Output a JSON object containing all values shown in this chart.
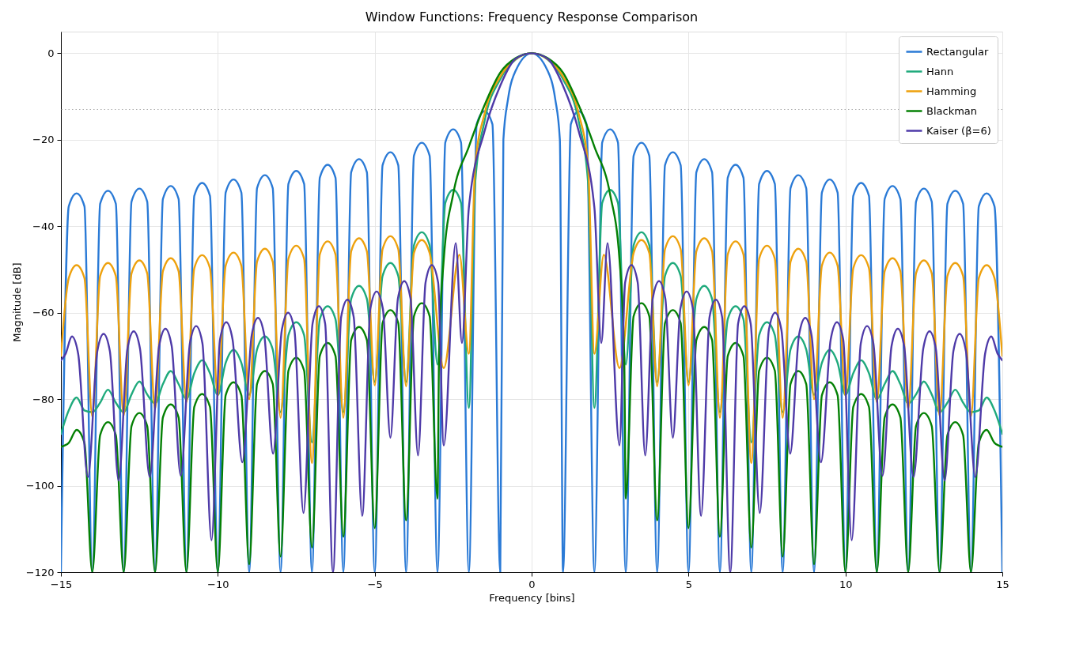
{
  "chart_data": {
    "type": "line",
    "title": "Window Functions: Frequency Response Comparison",
    "xlabel": "Frequency [bins]",
    "ylabel": "Magnitude [dB]",
    "xlim": [
      -15,
      15
    ],
    "ylim": [
      -120,
      5
    ],
    "xticks": [
      {
        "value": -15,
        "label": "−15"
      },
      {
        "value": -10,
        "label": "−10"
      },
      {
        "value": -5,
        "label": "−5"
      },
      0,
      5,
      10,
      15
    ],
    "yticks": [
      {
        "value": -120,
        "label": "−120"
      },
      {
        "value": -100,
        "label": "−100"
      },
      {
        "value": -80,
        "label": "−80"
      },
      {
        "value": -60,
        "label": "−60"
      },
      {
        "value": -40,
        "label": "−40"
      },
      {
        "value": -20,
        "label": "−20"
      },
      0
    ],
    "grid": true,
    "legend": "top right",
    "line_style": "solid",
    "marker": "none",
    "ref_lines": [
      {
        "axis": "y",
        "value": -13,
        "color": "#aaaaaa",
        "line_style": "dotted"
      }
    ],
    "series": [
      {
        "name": "Rectangular",
        "color": "#2a7ad6",
        "x": [
          -15,
          -14.75,
          -14.5,
          -14.25,
          -14,
          -13.75,
          -13.5,
          -13.25,
          -13,
          -12.75,
          -12.5,
          -12.25,
          -12,
          -11.75,
          -11.5,
          -11.25,
          -11,
          -10.75,
          -10.5,
          -10.25,
          -10,
          -9.75,
          -9.5,
          -9.25,
          -9,
          -8.75,
          -8.5,
          -8.25,
          -8,
          -7.75,
          -7.5,
          -7.25,
          -7,
          -6.75,
          -6.5,
          -6.25,
          -6,
          -5.75,
          -5.5,
          -5.25,
          -5,
          -4.75,
          -4.5,
          -4.25,
          -4,
          -3.75,
          -3.5,
          -3.25,
          -3,
          -2.75,
          -2.5,
          -2.25,
          -2,
          -1.75,
          -1.5,
          -1.25,
          -1,
          -0.9,
          -0.75,
          -0.5,
          0,
          0.5,
          0.75,
          0.9,
          1,
          1.25,
          1.5,
          1.75,
          2,
          2.25,
          2.5,
          2.75,
          3,
          3.25,
          3.5,
          3.75,
          4,
          4.25,
          4.5,
          4.75,
          5,
          5.25,
          5.5,
          5.75,
          6,
          6.25,
          6.5,
          6.75,
          7,
          7.25,
          7.5,
          7.75,
          8,
          8.25,
          8.5,
          8.75,
          9,
          9.25,
          9.5,
          9.75,
          10,
          10.25,
          10.5,
          10.75,
          11,
          11.25,
          11.5,
          11.75,
          12,
          12.25,
          12.5,
          12.75,
          13,
          13.25,
          13.5,
          13.75,
          14,
          14.25,
          14.5,
          14.75,
          15
        ],
        "values": [
          -120,
          -35.4,
          -32.4,
          -35.4,
          -120,
          -34.8,
          -31.8,
          -34.8,
          -120,
          -34.3,
          -31.3,
          -34.3,
          -120,
          -33.7,
          -30.7,
          -33.7,
          -120,
          -33,
          -30,
          -33,
          -120,
          -32.2,
          -29.2,
          -32.2,
          -120,
          -31.2,
          -28.2,
          -31.2,
          -120,
          -30.2,
          -27.2,
          -30.2,
          -120,
          -28.8,
          -25.8,
          -28.8,
          -120,
          -27.5,
          -24.5,
          -27.5,
          -120,
          -25.9,
          -22.9,
          -25.9,
          -120,
          -23.7,
          -20.7,
          -23.7,
          -120,
          -20.6,
          -17.6,
          -20.6,
          -120,
          -16.4,
          -13.4,
          -16.4,
          -120,
          -20,
          -10.5,
          -3.9,
          0,
          -3.9,
          -10.5,
          -20,
          -120,
          -16.4,
          -13.4,
          -16.4,
          -120,
          -20.6,
          -17.6,
          -20.6,
          -120,
          -23.7,
          -20.7,
          -23.7,
          -120,
          -25.9,
          -22.9,
          -25.9,
          -120,
          -27.5,
          -24.5,
          -27.5,
          -120,
          -28.8,
          -25.8,
          -28.8,
          -120,
          -30.2,
          -27.2,
          -30.2,
          -120,
          -31.2,
          -28.2,
          -31.2,
          -120,
          -32.2,
          -29.2,
          -32.2,
          -120,
          -33,
          -30,
          -33,
          -120,
          -33.7,
          -30.7,
          -33.7,
          -120,
          -34.3,
          -31.3,
          -34.3,
          -120,
          -34.8,
          -31.8,
          -34.8,
          -120,
          -35.4,
          -32.4,
          -35.4,
          -120
        ]
      },
      {
        "name": "Hann",
        "color": "#1faa7c",
        "x": [
          -15,
          -14.75,
          -14.5,
          -14.25,
          -14,
          -13.75,
          -13.5,
          -13.25,
          -13,
          -12.75,
          -12.5,
          -12.25,
          -12,
          -11.75,
          -11.5,
          -11.25,
          -11,
          -10.75,
          -10.5,
          -10.25,
          -10,
          -9.75,
          -9.5,
          -9.25,
          -9,
          -8.75,
          -8.5,
          -8.25,
          -8,
          -7.75,
          -7.5,
          -7.25,
          -7,
          -6.75,
          -6.5,
          -6.25,
          -6,
          -5.75,
          -5.5,
          -5.25,
          -5,
          -4.75,
          -4.5,
          -4.25,
          -4,
          -3.75,
          -3.5,
          -3.25,
          -3,
          -2.75,
          -2.5,
          -2.25,
          -2,
          -1.8,
          -1.5,
          -1,
          -0.5,
          0,
          0.5,
          1,
          1.5,
          1.8,
          2,
          2.25,
          2.5,
          2.75,
          3,
          3.25,
          3.5,
          3.75,
          4,
          4.25,
          4.5,
          4.75,
          5,
          5.25,
          5.5,
          5.75,
          6,
          6.25,
          6.5,
          6.75,
          7,
          7.25,
          7.5,
          7.75,
          8,
          8.25,
          8.5,
          8.75,
          9,
          9.25,
          9.5,
          9.75,
          10,
          10.25,
          10.5,
          10.75,
          11,
          11.25,
          11.5,
          11.75,
          12,
          12.25,
          12.5,
          12.75,
          13,
          13.25,
          13.5,
          13.75,
          14,
          14.25,
          14.5,
          14.75,
          15
        ],
        "values": [
          -88,
          -82.6,
          -79.6,
          -82.6,
          -83,
          -80.8,
          -77.8,
          -80.8,
          -83,
          -78.9,
          -75.9,
          -78.9,
          -81,
          -76.5,
          -73.5,
          -76.5,
          -80,
          -74,
          -71,
          -74,
          -79,
          -71.6,
          -68.6,
          -71.6,
          -79,
          -68.5,
          -65.5,
          -68.5,
          -83,
          -65.2,
          -62.2,
          -65.2,
          -90,
          -61.5,
          -58.5,
          -61.5,
          -83,
          -56.8,
          -53.8,
          -56.8,
          -76,
          -51.5,
          -48.5,
          -51.5,
          -76,
          -44.4,
          -41.4,
          -44.4,
          -72,
          -34.6,
          -31.6,
          -34.6,
          -82,
          -30,
          -15.7,
          -6,
          -1.4,
          0,
          -1.4,
          -6,
          -15.7,
          -30,
          -82,
          -34.6,
          -31.6,
          -34.6,
          -72,
          -44.4,
          -41.4,
          -44.4,
          -76,
          -51.5,
          -48.5,
          -51.5,
          -76,
          -56.8,
          -53.8,
          -56.8,
          -83,
          -61.5,
          -58.5,
          -61.5,
          -90,
          -65.2,
          -62.2,
          -65.2,
          -83,
          -68.5,
          -65.5,
          -68.5,
          -79,
          -71.6,
          -68.6,
          -71.6,
          -79,
          -74,
          -71,
          -74,
          -80,
          -76.5,
          -73.5,
          -76.5,
          -81,
          -78.9,
          -75.9,
          -78.9,
          -83,
          -80.8,
          -77.8,
          -80.8,
          -83,
          -82.6,
          -79.6,
          -82.6,
          -88
        ]
      },
      {
        "name": "Hamming",
        "color": "#eea10d",
        "x": [
          -15,
          -14.75,
          -14.5,
          -14.25,
          -14,
          -13.75,
          -13.5,
          -13.25,
          -13,
          -12.75,
          -12.5,
          -12.25,
          -12,
          -11.75,
          -11.5,
          -11.25,
          -11,
          -10.75,
          -10.5,
          -10.25,
          -10,
          -9.75,
          -9.5,
          -9.25,
          -9,
          -8.75,
          -8.5,
          -8.25,
          -8,
          -7.75,
          -7.5,
          -7.25,
          -7,
          -6.75,
          -6.5,
          -6.25,
          -6,
          -5.75,
          -5.5,
          -5.25,
          -5,
          -4.75,
          -4.5,
          -4.25,
          -4,
          -3.75,
          -3.5,
          -3.25,
          -2.8,
          -2.3,
          -2,
          -1.8,
          -1.5,
          -1,
          -0.5,
          0,
          0.5,
          1,
          1.5,
          1.8,
          2,
          2.3,
          2.8,
          3.25,
          3.5,
          3.75,
          4,
          4.25,
          4.5,
          4.75,
          5,
          5.25,
          5.5,
          5.75,
          6,
          6.25,
          6.5,
          6.75,
          7,
          7.25,
          7.5,
          7.75,
          8,
          8.25,
          8.5,
          8.75,
          9,
          9.25,
          9.5,
          9.75,
          10,
          10.25,
          10.5,
          10.75,
          11,
          11.25,
          11.5,
          11.75,
          12,
          12.25,
          12.5,
          12.75,
          13,
          13.25,
          13.5,
          13.75,
          14,
          14.25,
          14.5,
          14.75,
          15
        ],
        "values": [
          -70,
          -52,
          -49,
          -52,
          -84,
          -51.5,
          -48.5,
          -51.5,
          -83.8,
          -50.9,
          -47.9,
          -50.9,
          -82.3,
          -50.4,
          -47.4,
          -50.4,
          -80.7,
          -49.7,
          -46.7,
          -49.7,
          -79.2,
          -49.1,
          -46.1,
          -49.1,
          -80,
          -48.2,
          -45.2,
          -48.2,
          -84.3,
          -47.5,
          -44.5,
          -47.5,
          -94.8,
          -46.5,
          -43.5,
          -46.5,
          -84.3,
          -45.8,
          -42.8,
          -45.8,
          -76.8,
          -45.3,
          -42.3,
          -45.3,
          -77,
          -46.2,
          -43.2,
          -46.2,
          -72.8,
          -46.6,
          -69.5,
          -26,
          -14,
          -5.4,
          -1.3,
          0,
          -1.3,
          -5.4,
          -14,
          -26,
          -69.5,
          -46.6,
          -72.8,
          -46.2,
          -43.2,
          -46.2,
          -77,
          -45.3,
          -42.3,
          -45.3,
          -76.8,
          -45.8,
          -42.8,
          -45.8,
          -84.3,
          -46.5,
          -43.5,
          -46.5,
          -94.8,
          -47.5,
          -44.5,
          -47.5,
          -84.3,
          -48.2,
          -45.2,
          -48.2,
          -80,
          -49.1,
          -46.1,
          -49.1,
          -79.2,
          -49.7,
          -46.7,
          -49.7,
          -80.7,
          -50.4,
          -47.4,
          -50.4,
          -82.3,
          -50.9,
          -47.9,
          -50.9,
          -83.8,
          -51.5,
          -48.5,
          -51.5,
          -84,
          -52,
          -49,
          -52,
          -70
        ]
      },
      {
        "name": "Blackman",
        "color": "#048004",
        "x": [
          -15,
          -14.75,
          -14.5,
          -14.25,
          -14,
          -13.75,
          -13.5,
          -13.25,
          -13,
          -12.75,
          -12.5,
          -12.25,
          -12,
          -11.75,
          -11.5,
          -11.25,
          -11,
          -10.75,
          -10.5,
          -10.25,
          -10,
          -9.75,
          -9.5,
          -9.25,
          -9,
          -8.75,
          -8.5,
          -8.25,
          -8,
          -7.75,
          -7.5,
          -7.25,
          -7,
          -6.75,
          -6.5,
          -6.25,
          -6,
          -5.75,
          -5.5,
          -5.25,
          -5,
          -4.75,
          -4.5,
          -4.25,
          -4,
          -3.75,
          -3.5,
          -3.25,
          -3,
          -2.95,
          -2.8,
          -2.5,
          -2,
          -1.5,
          -1,
          -0.5,
          0,
          0.5,
          1,
          1.5,
          2,
          2.5,
          2.8,
          2.95,
          3,
          3.25,
          3.5,
          3.75,
          4,
          4.25,
          4.5,
          4.75,
          5,
          5.25,
          5.5,
          5.75,
          6,
          6.25,
          6.5,
          6.75,
          7,
          7.25,
          7.5,
          7.75,
          8,
          8.25,
          8.5,
          8.75,
          9,
          9.25,
          9.5,
          9.75,
          10,
          10.25,
          10.5,
          10.75,
          11,
          11.25,
          11.5,
          11.75,
          12,
          12.25,
          12.5,
          12.75,
          13,
          13.25,
          13.5,
          13.75,
          14,
          14.25,
          14.5,
          14.75,
          15
        ],
        "values": [
          -91,
          -90.1,
          -87.1,
          -90.1,
          -120,
          -88.3,
          -85.3,
          -88.3,
          -120,
          -86.2,
          -83.2,
          -86.2,
          -120,
          -84.2,
          -81.2,
          -84.2,
          -120,
          -81.8,
          -78.8,
          -81.8,
          -120,
          -79.1,
          -76.1,
          -79.1,
          -118.2,
          -76.5,
          -73.5,
          -76.5,
          -116.4,
          -73.4,
          -70.4,
          -73.4,
          -114.3,
          -70,
          -67,
          -70,
          -111.8,
          -66.3,
          -63.3,
          -66.3,
          -109.8,
          -62.4,
          -59.4,
          -62.4,
          -108,
          -60.8,
          -57.8,
          -60.8,
          -103,
          -70,
          -47.7,
          -32.6,
          -21.6,
          -12,
          -4.5,
          -1.1,
          0,
          -1.1,
          -4.5,
          -12,
          -21.6,
          -32.6,
          -47.7,
          -70,
          -103,
          -60.8,
          -57.8,
          -60.8,
          -108,
          -62.4,
          -59.4,
          -62.4,
          -109.8,
          -66.3,
          -63.3,
          -66.3,
          -111.8,
          -70,
          -67,
          -70,
          -114.3,
          -73.4,
          -70.4,
          -73.4,
          -116.4,
          -76.5,
          -73.5,
          -76.5,
          -118.2,
          -79.1,
          -76.1,
          -79.1,
          -120,
          -81.8,
          -78.8,
          -81.8,
          -120,
          -84.2,
          -81.2,
          -84.2,
          -120,
          -86.2,
          -83.2,
          -86.2,
          -120,
          -88.3,
          -85.3,
          -88.3,
          -120,
          -90.1,
          -87.1,
          -90.1,
          -91
        ]
      },
      {
        "name": "Kaiser (β=6)",
        "color": "#4e3aa8",
        "x": [
          -15,
          -14.85,
          -14.65,
          -14.45,
          -14.14,
          -13.84,
          -13.64,
          -13.44,
          -13.16,
          -12.88,
          -12.68,
          -12.48,
          -12.17,
          -11.87,
          -11.67,
          -11.47,
          -11.18,
          -10.89,
          -10.69,
          -10.49,
          -10.2,
          -9.93,
          -9.73,
          -9.53,
          -9.22,
          -8.92,
          -8.72,
          -8.52,
          -8.24,
          -7.96,
          -7.76,
          -7.56,
          -7.27,
          -6.98,
          -6.78,
          -6.58,
          -6.33,
          -6.07,
          -5.87,
          -5.67,
          -5.4,
          -5.14,
          -4.94,
          -4.74,
          -4.5,
          -4.26,
          -4.06,
          -3.86,
          -3.62,
          -3.38,
          -3.18,
          -2.98,
          -2.8,
          -2.42,
          -2.22,
          -2,
          -1.5,
          -1,
          -0.5,
          0,
          0.5,
          1,
          1.5,
          2,
          2.22,
          2.42,
          2.8,
          2.98,
          3.18,
          3.38,
          3.62,
          3.86,
          4.06,
          4.26,
          4.5,
          4.74,
          4.94,
          5.14,
          5.4,
          5.67,
          5.87,
          6.07,
          6.33,
          6.58,
          6.78,
          6.98,
          7.27,
          7.56,
          7.76,
          7.96,
          8.24,
          8.52,
          8.72,
          8.92,
          9.22,
          9.53,
          9.73,
          9.93,
          10.2,
          10.49,
          10.69,
          10.89,
          11.18,
          11.47,
          11.67,
          11.87,
          12.17,
          12.48,
          12.68,
          12.88,
          13.16,
          13.44,
          13.64,
          13.84,
          14.14,
          14.45,
          14.65,
          14.85,
          15
        ],
        "values": [
          -71,
          -69.5,
          -65.5,
          -69.5,
          -98,
          -68.9,
          -64.9,
          -68.9,
          -98.8,
          -68.3,
          -64.3,
          -68.3,
          -98,
          -67.7,
          -63.7,
          -67.7,
          -97.7,
          -67.1,
          -63.1,
          -67.1,
          -112.6,
          -66.2,
          -62.2,
          -66.2,
          -94.6,
          -65.2,
          -61.2,
          -65.2,
          -92.6,
          -64,
          -60,
          -64,
          -106.3,
          -62.5,
          -58.5,
          -62.5,
          -120,
          -61,
          -57,
          -61,
          -107,
          -59.1,
          -55.1,
          -59.1,
          -88.9,
          -56.7,
          -52.7,
          -56.7,
          -93,
          -53,
          -49,
          -53,
          -90.7,
          -43.9,
          -67,
          -35.7,
          -18,
          -7.5,
          -1.2,
          0,
          -1.2,
          -7.5,
          -18,
          -35.7,
          -67,
          -43.9,
          -90.7,
          -53,
          -49,
          -53,
          -93,
          -56.7,
          -52.7,
          -56.7,
          -88.9,
          -59.1,
          -55.1,
          -59.1,
          -107,
          -61,
          -57,
          -61,
          -120,
          -62.5,
          -58.5,
          -62.5,
          -106.3,
          -64,
          -60,
          -64,
          -92.6,
          -65.2,
          -61.2,
          -65.2,
          -94.6,
          -66.2,
          -62.2,
          -66.2,
          -112.6,
          -67.1,
          -63.1,
          -67.1,
          -97.7,
          -67.7,
          -63.7,
          -67.7,
          -98,
          -68.3,
          -64.3,
          -68.3,
          -98.8,
          -68.9,
          -64.9,
          -68.9,
          -98,
          -69.5,
          -65.5,
          -69.5,
          -71
        ]
      }
    ]
  }
}
